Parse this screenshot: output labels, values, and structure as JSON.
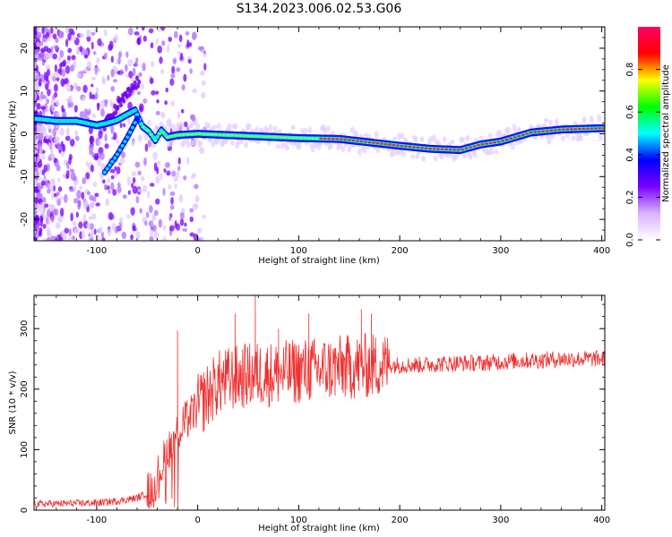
{
  "figure": {
    "title": "S134.2023.006.02.53.G06"
  },
  "colors": {
    "snr_line": "#f03030",
    "axis": "#000000",
    "background": "#ffffff"
  },
  "chart_data": [
    {
      "type": "heatmap",
      "xlabel": "Height of straight line (km)",
      "ylabel": "Frequency (Hz)",
      "xlim": [
        -162,
        403
      ],
      "ylim": [
        -25,
        25
      ],
      "xticks": [
        -100,
        0,
        100,
        200,
        300,
        400
      ],
      "xtick_labels": [
        "-100",
        "0",
        "100",
        "200",
        "300",
        "400"
      ],
      "yticks": [
        -20,
        -10,
        0,
        10,
        20
      ],
      "ytick_labels": [
        "-20",
        "-10",
        "0",
        "10",
        "20"
      ],
      "colorbar": {
        "label": "Normalized spectral amplitude",
        "range": [
          0,
          1
        ],
        "ticks": [
          0.0,
          0.2,
          0.4,
          0.6,
          0.8
        ],
        "tick_labels": [
          "0.0",
          "0.2",
          "0.4",
          "0.6",
          "0.8"
        ],
        "colormap": [
          "#ffffff",
          "#d9b3ff",
          "#7a00ff",
          "#0000ff",
          "#00ffff",
          "#00ff00",
          "#ffff00",
          "#ff0000",
          "#ff0066"
        ]
      },
      "main_trace": [
        [
          -160,
          3.5
        ],
        [
          -140,
          3.0
        ],
        [
          -120,
          3.0
        ],
        [
          -100,
          2.0
        ],
        [
          -90,
          2.5
        ],
        [
          -80,
          3.2
        ],
        [
          -70,
          4.5
        ],
        [
          -62,
          5.5
        ],
        [
          -55,
          1.8
        ],
        [
          -48,
          0.5
        ],
        [
          -42,
          -1.5
        ],
        [
          -36,
          0.8
        ],
        [
          -30,
          -0.8
        ],
        [
          -20,
          -0.3
        ],
        [
          0,
          0.0
        ],
        [
          50,
          -0.5
        ],
        [
          100,
          -1.0
        ],
        [
          140,
          -1.2
        ],
        [
          170,
          -2.0
        ],
        [
          200,
          -2.8
        ],
        [
          230,
          -3.5
        ],
        [
          260,
          -3.8
        ],
        [
          280,
          -2.5
        ],
        [
          300,
          -1.8
        ],
        [
          330,
          0.3
        ],
        [
          360,
          1.0
        ],
        [
          400,
          1.3
        ]
      ],
      "secondary_trace": [
        [
          -92,
          -9.0
        ],
        [
          -80,
          -5.0
        ],
        [
          -70,
          -1.0
        ],
        [
          -60,
          3.5
        ]
      ],
      "upper_trace": [
        [
          -92,
          2.0
        ],
        [
          -80,
          6.0
        ],
        [
          -70,
          9.0
        ],
        [
          -60,
          12.0
        ]
      ]
    },
    {
      "type": "line",
      "xlabel": "Height of straight line (km)",
      "ylabel": "SNR (10 * v/v)",
      "xlim": [
        -162,
        403
      ],
      "ylim": [
        0,
        355
      ],
      "xticks": [
        -100,
        0,
        100,
        200,
        300,
        400
      ],
      "xtick_labels": [
        "-100",
        "0",
        "100",
        "200",
        "300",
        "400"
      ],
      "yticks": [
        0,
        100,
        200,
        300
      ],
      "ytick_labels": [
        "0",
        "100",
        "200",
        "300"
      ],
      "envelope": [
        [
          -162,
          10
        ],
        [
          -100,
          12
        ],
        [
          -80,
          15
        ],
        [
          -60,
          20
        ],
        [
          -50,
          28
        ],
        [
          -45,
          40
        ],
        [
          -40,
          55
        ],
        [
          -35,
          75
        ],
        [
          -30,
          100
        ],
        [
          -25,
          110
        ],
        [
          -20,
          130
        ],
        [
          -15,
          140
        ],
        [
          -10,
          150
        ],
        [
          -5,
          160
        ],
        [
          0,
          170
        ],
        [
          10,
          190
        ],
        [
          20,
          210
        ],
        [
          30,
          215
        ],
        [
          40,
          220
        ],
        [
          60,
          225
        ],
        [
          80,
          225
        ],
        [
          100,
          230
        ],
        [
          120,
          232
        ],
        [
          140,
          235
        ],
        [
          160,
          237
        ],
        [
          180,
          240
        ],
        [
          200,
          240
        ],
        [
          220,
          240
        ],
        [
          240,
          242
        ],
        [
          260,
          243
        ],
        [
          280,
          243
        ],
        [
          300,
          245
        ],
        [
          320,
          247
        ],
        [
          340,
          248
        ],
        [
          360,
          250
        ],
        [
          380,
          250
        ],
        [
          403,
          250
        ]
      ],
      "peaks": [
        [
          -20,
          297
        ],
        [
          37,
          325
        ],
        [
          57,
          355
        ],
        [
          80,
          300
        ],
        [
          110,
          325
        ],
        [
          162,
          332
        ],
        [
          172,
          325
        ]
      ]
    }
  ]
}
